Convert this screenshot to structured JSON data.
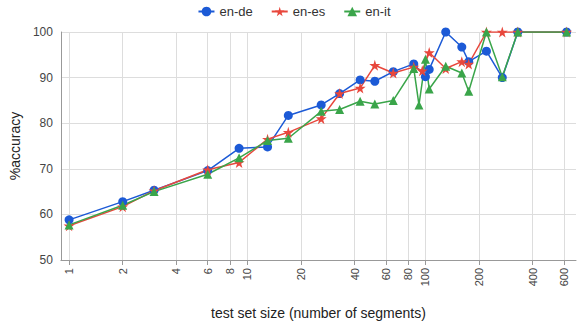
{
  "chart_data": {
    "type": "line",
    "x_label": "test set size (number of segments)",
    "y_label": "%accuracy",
    "log": "x",
    "grid": true,
    "legend": "top",
    "xlim": [
      0.9,
      700
    ],
    "xticks": [
      1,
      2,
      4,
      6,
      8,
      10,
      20,
      40,
      60,
      80,
      100,
      200,
      400,
      600
    ],
    "ylim": [
      50,
      100
    ],
    "yticks": [
      50,
      60,
      70,
      80,
      90,
      100
    ],
    "series": [
      {
        "name": "en-de",
        "color": "#1c5ad6",
        "marker": "circle",
        "x": [
          1,
          2,
          3,
          6,
          9,
          13,
          17,
          26,
          33,
          43,
          52,
          66,
          86,
          100,
          105,
          130,
          160,
          175,
          220,
          270,
          330,
          620
        ],
        "values": [
          58.8,
          62.8,
          65.3,
          69.6,
          74.5,
          74.8,
          81.7,
          84,
          86.5,
          89.5,
          89.2,
          91.3,
          93,
          90.2,
          91.8,
          100,
          96.7,
          93.5,
          95.8,
          90,
          100,
          100
        ]
      },
      {
        "name": "en-es",
        "color": "#e8473c",
        "marker": "star",
        "x": [
          1,
          2,
          3,
          6,
          9,
          13,
          17,
          26,
          33,
          43,
          52,
          66,
          86,
          96,
          105,
          130,
          160,
          175,
          220,
          270,
          330,
          620
        ],
        "values": [
          57.5,
          61.7,
          65.2,
          69.8,
          71.4,
          76.5,
          78,
          81,
          86.5,
          87.7,
          92.7,
          91,
          92.3,
          91.5,
          95.5,
          92,
          93.5,
          93,
          100,
          100,
          100,
          100
        ]
      },
      {
        "name": "en-it",
        "color": "#3aa54a",
        "marker": "triangle",
        "x": [
          1,
          2,
          3,
          6,
          9,
          13,
          17,
          26,
          33,
          43,
          52,
          66,
          86,
          92,
          100,
          105,
          130,
          160,
          175,
          220,
          270,
          330,
          620
        ],
        "values": [
          57.7,
          62,
          65,
          68.8,
          72.4,
          76.2,
          76.7,
          82.6,
          83,
          84.8,
          84.2,
          85,
          92,
          84,
          94,
          87.5,
          92.5,
          91,
          87,
          100,
          90.2,
          100,
          100
        ]
      }
    ]
  }
}
